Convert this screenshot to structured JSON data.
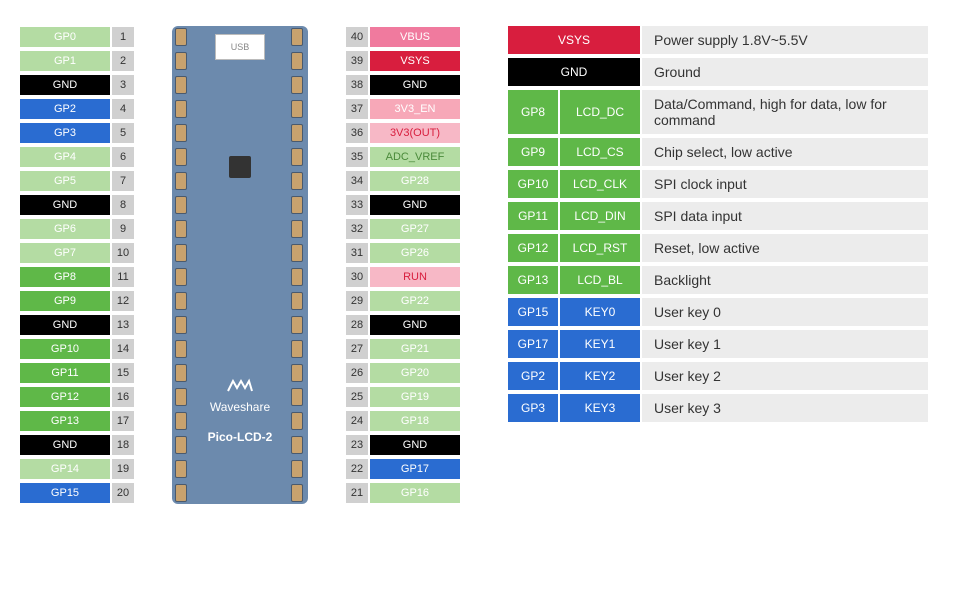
{
  "board": {
    "brand": "Waveshare",
    "model": "Pico-LCD-2",
    "usb": "USB",
    "side_right": [
      "VBUS",
      "VSYS",
      "GND",
      "3V3_EN",
      "3V3"
    ],
    "side_left": [
      "KEY2",
      "KEY3"
    ]
  },
  "left_pins": [
    {
      "n": "1",
      "l": "GP0",
      "c": "c-gpio"
    },
    {
      "n": "2",
      "l": "GP1",
      "c": "c-gpio"
    },
    {
      "n": "3",
      "l": "GND",
      "c": "c-gnd"
    },
    {
      "n": "4",
      "l": "GP2",
      "c": "c-key"
    },
    {
      "n": "5",
      "l": "GP3",
      "c": "c-key"
    },
    {
      "n": "6",
      "l": "GP4",
      "c": "c-gpio"
    },
    {
      "n": "7",
      "l": "GP5",
      "c": "c-gpio"
    },
    {
      "n": "8",
      "l": "GND",
      "c": "c-gnd"
    },
    {
      "n": "9",
      "l": "GP6",
      "c": "c-gpio"
    },
    {
      "n": "10",
      "l": "GP7",
      "c": "c-gpio"
    },
    {
      "n": "11",
      "l": "GP8",
      "c": "c-gpio-act"
    },
    {
      "n": "12",
      "l": "GP9",
      "c": "c-gpio-act"
    },
    {
      "n": "13",
      "l": "GND",
      "c": "c-gnd"
    },
    {
      "n": "14",
      "l": "GP10",
      "c": "c-gpio-act"
    },
    {
      "n": "15",
      "l": "GP11",
      "c": "c-gpio-act"
    },
    {
      "n": "16",
      "l": "GP12",
      "c": "c-gpio-act"
    },
    {
      "n": "17",
      "l": "GP13",
      "c": "c-gpio-act"
    },
    {
      "n": "18",
      "l": "GND",
      "c": "c-gnd"
    },
    {
      "n": "19",
      "l": "GP14",
      "c": "c-gpio"
    },
    {
      "n": "20",
      "l": "GP15",
      "c": "c-key"
    }
  ],
  "right_pins": [
    {
      "n": "40",
      "l": "VBUS",
      "c": "c-vbus"
    },
    {
      "n": "39",
      "l": "VSYS",
      "c": "c-vsys"
    },
    {
      "n": "38",
      "l": "GND",
      "c": "c-gnd"
    },
    {
      "n": "37",
      "l": "3V3_EN",
      "c": "c-3v3en"
    },
    {
      "n": "36",
      "l": "3V3(OUT)",
      "c": "c-3v3out"
    },
    {
      "n": "35",
      "l": "ADC_VREF",
      "c": "c-vref"
    },
    {
      "n": "34",
      "l": "GP28",
      "c": "c-gpio"
    },
    {
      "n": "33",
      "l": "GND",
      "c": "c-gnd"
    },
    {
      "n": "32",
      "l": "GP27",
      "c": "c-gpio"
    },
    {
      "n": "31",
      "l": "GP26",
      "c": "c-gpio"
    },
    {
      "n": "30",
      "l": "RUN",
      "c": "c-run"
    },
    {
      "n": "29",
      "l": "GP22",
      "c": "c-gpio"
    },
    {
      "n": "28",
      "l": "GND",
      "c": "c-gnd"
    },
    {
      "n": "27",
      "l": "GP21",
      "c": "c-gpio"
    },
    {
      "n": "26",
      "l": "GP20",
      "c": "c-gpio"
    },
    {
      "n": "25",
      "l": "GP19",
      "c": "c-gpio"
    },
    {
      "n": "24",
      "l": "GP18",
      "c": "c-gpio"
    },
    {
      "n": "23",
      "l": "GND",
      "c": "c-gnd"
    },
    {
      "n": "22",
      "l": "GP17",
      "c": "c-key"
    },
    {
      "n": "21",
      "l": "GP16",
      "c": "c-gpio"
    }
  ],
  "legend": [
    {
      "tags": [
        {
          "t": "VSYS",
          "c": "c-vsys",
          "w": "full"
        }
      ],
      "d": "Power supply 1.8V~5.5V"
    },
    {
      "tags": [
        {
          "t": "GND",
          "c": "c-gnd",
          "w": "full"
        }
      ],
      "d": "Ground"
    },
    {
      "tags": [
        {
          "t": "GP8",
          "c": "c-lcd",
          "w": "w1"
        },
        {
          "t": "LCD_DC",
          "c": "c-lcd",
          "w": "w2"
        }
      ],
      "d": "Data/Command, high for data, low for command"
    },
    {
      "tags": [
        {
          "t": "GP9",
          "c": "c-lcd",
          "w": "w1"
        },
        {
          "t": "LCD_CS",
          "c": "c-lcd",
          "w": "w2"
        }
      ],
      "d": "Chip select, low active"
    },
    {
      "tags": [
        {
          "t": "GP10",
          "c": "c-lcd",
          "w": "w1"
        },
        {
          "t": "LCD_CLK",
          "c": "c-lcd",
          "w": "w2"
        }
      ],
      "d": "SPI clock input"
    },
    {
      "tags": [
        {
          "t": "GP11",
          "c": "c-lcd",
          "w": "w1"
        },
        {
          "t": "LCD_DIN",
          "c": "c-lcd",
          "w": "w2"
        }
      ],
      "d": "SPI data input"
    },
    {
      "tags": [
        {
          "t": "GP12",
          "c": "c-lcd",
          "w": "w1"
        },
        {
          "t": "LCD_RST",
          "c": "c-lcd",
          "w": "w2"
        }
      ],
      "d": "Reset, low active"
    },
    {
      "tags": [
        {
          "t": "GP13",
          "c": "c-lcd",
          "w": "w1"
        },
        {
          "t": "LCD_BL",
          "c": "c-lcd",
          "w": "w2"
        }
      ],
      "d": "Backlight"
    },
    {
      "tags": [
        {
          "t": "GP15",
          "c": "c-key",
          "w": "w1"
        },
        {
          "t": "KEY0",
          "c": "c-key",
          "w": "w2"
        }
      ],
      "d": "User key 0"
    },
    {
      "tags": [
        {
          "t": "GP17",
          "c": "c-key",
          "w": "w1"
        },
        {
          "t": "KEY1",
          "c": "c-key",
          "w": "w2"
        }
      ],
      "d": "User key 1"
    },
    {
      "tags": [
        {
          "t": "GP2",
          "c": "c-key",
          "w": "w1"
        },
        {
          "t": "KEY2",
          "c": "c-key",
          "w": "w2"
        }
      ],
      "d": "User key 2"
    },
    {
      "tags": [
        {
          "t": "GP3",
          "c": "c-key",
          "w": "w1"
        },
        {
          "t": "KEY3",
          "c": "c-key",
          "w": "w2"
        }
      ],
      "d": "User key 3"
    }
  ],
  "colors": {
    "gnd": "#000",
    "vsys": "#d81e3e",
    "vbus": "#f07a9e",
    "gpio": "#b4dca3",
    "lcd": "#5fb848",
    "key": "#2a6cd1",
    "board": "#6c8aad"
  }
}
